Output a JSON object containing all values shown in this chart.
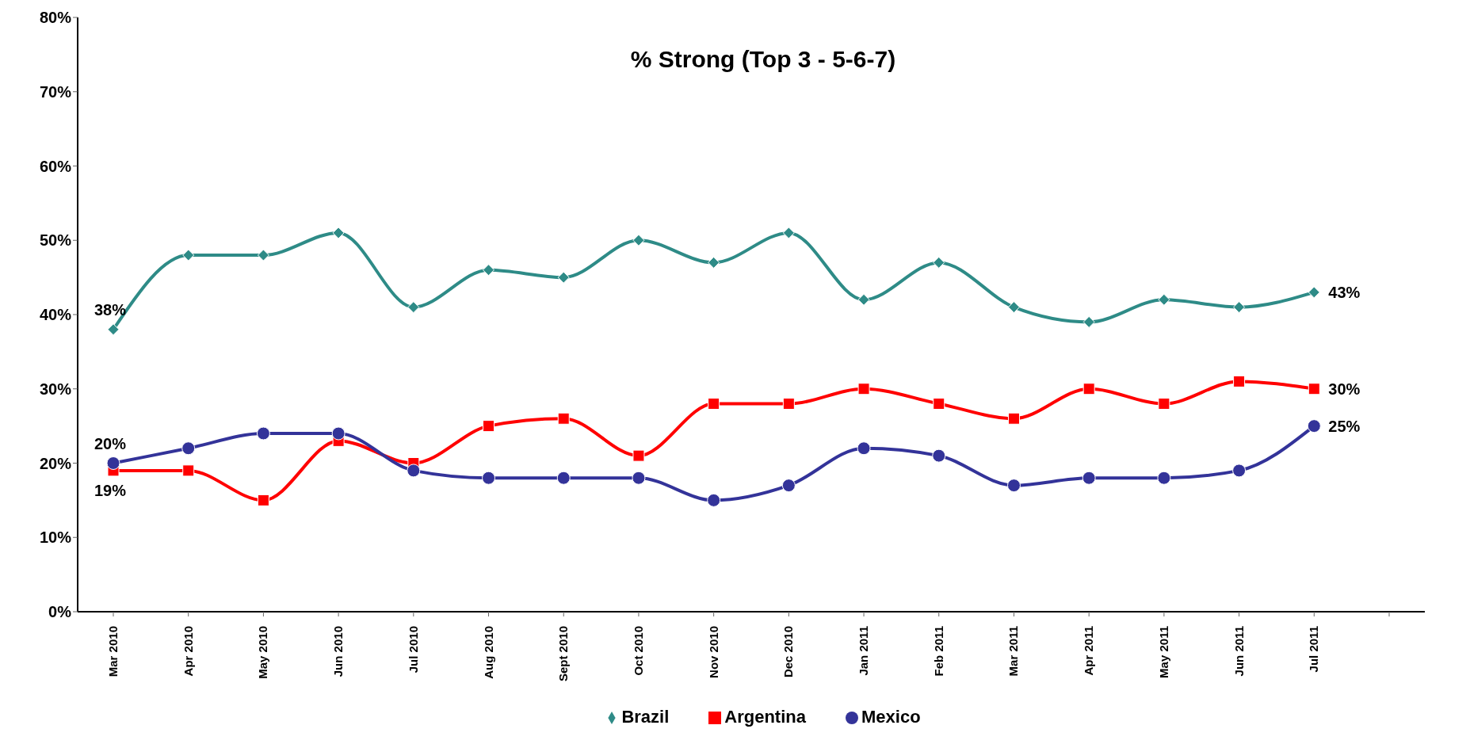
{
  "chart_data": {
    "type": "line",
    "title": "% Strong (Top 3 - 5-6-7)",
    "categories": [
      "Mar 2010",
      "Apr 2010",
      "May 2010",
      "Jun 2010",
      "Jul 2010",
      "Aug 2010",
      "Sept 2010",
      "Oct 2010",
      "Nov 2010",
      "Dec 2010",
      "Jan 2011",
      "Feb 2011",
      "Mar 2011",
      "Apr 2011",
      "May 2011",
      "Jun 2011",
      "Jul 2011",
      null
    ],
    "series": [
      {
        "name": "Brazil",
        "color": "#2e8b87",
        "marker": "diamond",
        "values": [
          38,
          48,
          48,
          51,
          41,
          46,
          45,
          50,
          47,
          51,
          42,
          47,
          41,
          39,
          42,
          41,
          43,
          null
        ],
        "value_labels": [
          "38%",
          null,
          null,
          null,
          null,
          null,
          null,
          null,
          null,
          null,
          null,
          null,
          null,
          null,
          null,
          null,
          "43%",
          null
        ]
      },
      {
        "name": "Argentina",
        "color": "#ff0000",
        "marker": "square",
        "values": [
          19,
          19,
          15,
          23,
          20,
          25,
          26,
          21,
          28,
          28,
          30,
          28,
          26,
          30,
          28,
          31,
          30,
          null
        ],
        "value_labels": [
          "19%",
          null,
          null,
          null,
          null,
          null,
          null,
          null,
          null,
          null,
          null,
          null,
          null,
          null,
          null,
          null,
          "30%",
          null
        ]
      },
      {
        "name": "Mexico",
        "color": "#333399",
        "marker": "circle",
        "values": [
          20,
          22,
          24,
          24,
          19,
          18,
          18,
          18,
          15,
          17,
          22,
          21,
          17,
          18,
          18,
          19,
          25,
          null
        ],
        "value_labels": [
          "20%",
          null,
          null,
          null,
          null,
          null,
          null,
          null,
          null,
          null,
          null,
          null,
          null,
          null,
          null,
          null,
          "25%",
          null
        ]
      }
    ],
    "ylim": [
      0,
      80
    ],
    "yticks": [
      {
        "value": 0,
        "label": "0%"
      },
      {
        "value": 10,
        "label": "10%"
      },
      {
        "value": 20,
        "label": "20%"
      },
      {
        "value": 30,
        "label": "30%"
      },
      {
        "value": 40,
        "label": "40%"
      },
      {
        "value": 50,
        "label": "50%"
      },
      {
        "value": 60,
        "label": "60%"
      },
      {
        "value": 70,
        "label": "70%"
      },
      {
        "value": 80,
        "label": "80%"
      }
    ],
    "legend": "bottom",
    "grid": false
  }
}
